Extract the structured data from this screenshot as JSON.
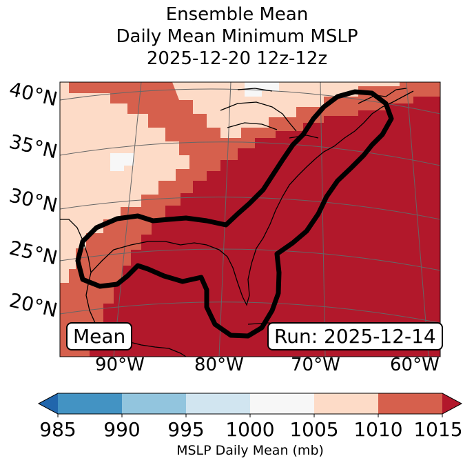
{
  "title_lines": [
    "Ensemble Mean",
    "Daily Mean Minimum MSLP",
    "2025-12-20 12z-12z"
  ],
  "lat_labels": [
    "40°N",
    "35°N",
    "30°N",
    "25°N",
    "20°N"
  ],
  "lon_labels": [
    "90°W",
    "80°W",
    "70°W",
    "60°W"
  ],
  "mean_label": "Mean",
  "run_label": "Run: 2025-12-14",
  "colorbar": {
    "label": "MSLP Daily Mean (mb)",
    "ticks": [
      "985",
      "990",
      "995",
      "1000",
      "1005",
      "1010",
      "1015"
    ],
    "colors": [
      "#2166ac",
      "#4393c3",
      "#92c5de",
      "#d1e5f0",
      "#f7f7f7",
      "#fddbc7",
      "#d6604d",
      "#b2182b"
    ]
  },
  "map_colors": {
    "level_1000_1005": "#f7f7f7",
    "level_1005_1010": "#fddbc7",
    "level_1010_1015": "#d6604d",
    "level_above_1015": "#b2182b",
    "contour": "#000000"
  }
}
